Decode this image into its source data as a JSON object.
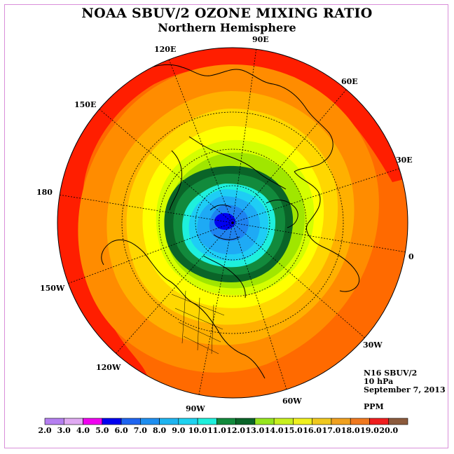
{
  "header": {
    "title": "NOAA SBUV/2 OZONE MIXING RATIO",
    "subtitle": "Northern Hemisphere"
  },
  "longitude_labels": [
    "90E",
    "60E",
    "30E",
    "0",
    "30W",
    "60W",
    "90W",
    "120W",
    "150W",
    "180",
    "150E",
    "120E"
  ],
  "info": {
    "instrument": "N16 SBUV/2",
    "level": "10 hPa",
    "date": "September 7, 2013",
    "units": "PPM"
  },
  "colorbar": {
    "ticks": [
      "2.0",
      "3.0",
      "4.0",
      "5.0",
      "6.0",
      "7.0",
      "8.0",
      "9.0",
      "10.0",
      "11.0",
      "12.0",
      "13.0",
      "14.0",
      "15.0",
      "16.0",
      "17.0",
      "18.0",
      "19.0",
      "20.0"
    ],
    "colors": [
      "#b57ff0",
      "#e0aaf2",
      "#f000f0",
      "#0000f0",
      "#1e64f0",
      "#1e8ef0",
      "#1eb4f0",
      "#1ed2f0",
      "#1ef0dc",
      "#128a3c",
      "#0a6428",
      "#96e61e",
      "#c8f01e",
      "#f0f01e",
      "#f0c81e",
      "#f0a01e",
      "#f0781e",
      "#f01e1e",
      "#8c5a3c"
    ]
  },
  "map": {
    "contour_colors": {
      "ring_18_19": "#ff6a00",
      "ring_17_18": "#ff8c00",
      "ring_16_17": "#ffb000",
      "ring_15_16": "#ffd700",
      "ring_14_15": "#ffff00",
      "ring_13_14": "#d4ff00",
      "ring_12_13": "#a0e600",
      "ring_11_12": "#0a6428",
      "ring_10_11": "#128a3c",
      "ring_9_10": "#1ef0dc",
      "ring_8_9": "#1ecdf5",
      "ring_7_8": "#1eaaf5",
      "ring_6_7": "#1e82f0",
      "ring_5_6": "#0000f0",
      "outer_red": "#ff1e00"
    }
  }
}
